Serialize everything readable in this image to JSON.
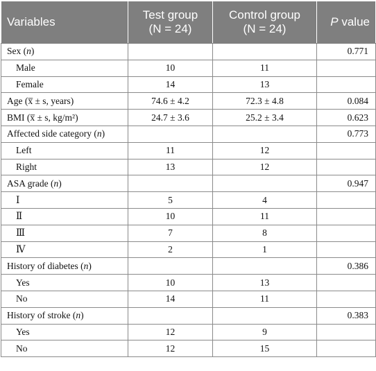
{
  "headers": {
    "variables": "Variables",
    "test_line1": "Test group",
    "test_line2": "(N = 24)",
    "control_line1": "Control group",
    "control_line2": "(N = 24)",
    "p_value_p": "P",
    "p_value_rest": " value"
  },
  "rows": [
    {
      "label": "Sex (n)",
      "test": "",
      "control": "",
      "p": "0.771"
    },
    {
      "label": "Male",
      "test": "10",
      "control": "11",
      "p": ""
    },
    {
      "label": "Female",
      "test": "14",
      "control": "13",
      "p": ""
    },
    {
      "label": "Age (x̅ ± s, years)",
      "test": "74.6 ± 4.2",
      "control": "72.3 ± 4.8",
      "p": "0.084"
    },
    {
      "label": "BMI (x̅ ± s, kg/m²)",
      "test": "24.7 ± 3.6",
      "control": "25.2 ± 3.4",
      "p": "0.623"
    },
    {
      "label": "Affected side category (n)",
      "test": "",
      "control": "",
      "p": "0.773"
    },
    {
      "label": "Left",
      "test": "11",
      "control": "12",
      "p": ""
    },
    {
      "label": "Right",
      "test": "13",
      "control": "12",
      "p": ""
    },
    {
      "label": "ASA grade (n)",
      "test": "",
      "control": "",
      "p": "0.947"
    },
    {
      "label": "Ⅰ",
      "test": "5",
      "control": "4",
      "p": ""
    },
    {
      "label": "Ⅱ",
      "test": "10",
      "control": "11",
      "p": ""
    },
    {
      "label": "Ⅲ",
      "test": "7",
      "control": "8",
      "p": ""
    },
    {
      "label": "Ⅳ",
      "test": "2",
      "control": "1",
      "p": ""
    },
    {
      "label": "History of diabetes (n)",
      "test": "",
      "control": "",
      "p": "0.386"
    },
    {
      "label": "Yes",
      "test": "10",
      "control": "13",
      "p": ""
    },
    {
      "label": "No",
      "test": "14",
      "control": "11",
      "p": ""
    },
    {
      "label": "History of stroke (n)",
      "test": "",
      "control": "",
      "p": "0.383"
    },
    {
      "label": "Yes",
      "test": "12",
      "control": "9",
      "p": ""
    },
    {
      "label": "No",
      "test": "12",
      "control": "15",
      "p": ""
    }
  ]
}
